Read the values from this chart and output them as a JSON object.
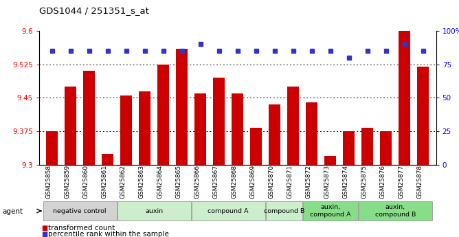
{
  "title": "GDS1044 / 251351_s_at",
  "samples": [
    "GSM25858",
    "GSM25859",
    "GSM25860",
    "GSM25861",
    "GSM25862",
    "GSM25863",
    "GSM25864",
    "GSM25865",
    "GSM25866",
    "GSM25867",
    "GSM25868",
    "GSM25869",
    "GSM25870",
    "GSM25871",
    "GSM25872",
    "GSM25873",
    "GSM25874",
    "GSM25875",
    "GSM25876",
    "GSM25877",
    "GSM25878"
  ],
  "bar_values": [
    9.375,
    9.475,
    9.51,
    9.325,
    9.455,
    9.465,
    9.525,
    9.56,
    9.46,
    9.495,
    9.46,
    9.383,
    9.435,
    9.475,
    9.44,
    9.32,
    9.375,
    9.383,
    9.375,
    9.6,
    9.52
  ],
  "percentile_values": [
    85,
    85,
    85,
    85,
    85,
    85,
    85,
    85,
    90,
    85,
    85,
    85,
    85,
    85,
    85,
    85,
    80,
    85,
    85,
    90,
    85
  ],
  "bar_color": "#cc0000",
  "percentile_color": "#3333cc",
  "ylim_left": [
    9.3,
    9.6
  ],
  "ylim_right": [
    0,
    100
  ],
  "yticks_left": [
    9.3,
    9.375,
    9.45,
    9.525,
    9.6
  ],
  "yticks_right": [
    0,
    25,
    50,
    75,
    100
  ],
  "ytick_labels_right": [
    "0",
    "25",
    "50",
    "75",
    "100%"
  ],
  "grid_values": [
    9.375,
    9.45,
    9.525
  ],
  "agent_groups": [
    {
      "label": "negative control",
      "start": 0,
      "end": 4,
      "color": "#d3d3d3"
    },
    {
      "label": "auxin",
      "start": 4,
      "end": 8,
      "color": "#cceecc"
    },
    {
      "label": "compound A",
      "start": 8,
      "end": 12,
      "color": "#cceecc"
    },
    {
      "label": "compound B",
      "start": 12,
      "end": 14,
      "color": "#cceecc"
    },
    {
      "label": "auxin,\ncompound A",
      "start": 14,
      "end": 17,
      "color": "#88dd88"
    },
    {
      "label": "auxin,\ncompound B",
      "start": 17,
      "end": 21,
      "color": "#88dd88"
    }
  ],
  "legend_bar_label": "transformed count",
  "legend_dot_label": "percentile rank within the sample",
  "agent_label": "agent",
  "background_color": "#ffffff"
}
